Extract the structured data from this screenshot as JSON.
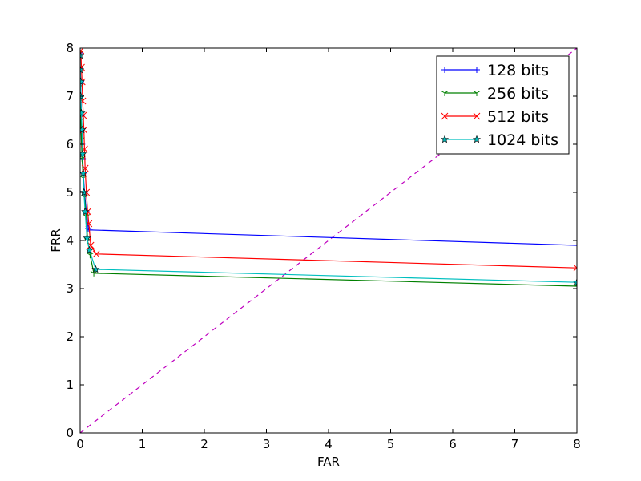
{
  "chart_data": {
    "type": "line",
    "xlabel": "FAR",
    "ylabel": "FRR",
    "xlim": [
      0,
      8
    ],
    "ylim": [
      0,
      8
    ],
    "xticks": [
      "0",
      "1",
      "2",
      "3",
      "4",
      "5",
      "6",
      "7",
      "8"
    ],
    "yticks": [
      "0",
      "1",
      "2",
      "3",
      "4",
      "5",
      "6",
      "7",
      "8"
    ],
    "grid": false,
    "legend_position": "top-right",
    "reference_line": {
      "style": "dashed",
      "color": "#bf00bf",
      "x": [
        0,
        8
      ],
      "y": [
        0,
        8
      ]
    },
    "series": [
      {
        "name": "128 bits",
        "color": "#0000ff",
        "marker": "plus",
        "x": [
          0.0,
          0.0,
          0.01,
          0.01,
          0.02,
          0.02,
          0.03,
          0.04,
          0.05,
          0.07,
          0.1,
          0.13,
          0.15,
          8.0
        ],
        "y": [
          7.9,
          7.6,
          7.3,
          7.0,
          6.6,
          6.3,
          6.0,
          5.7,
          5.4,
          5.0,
          4.6,
          4.25,
          4.22,
          3.9
        ]
      },
      {
        "name": "256 bits",
        "color": "#008000",
        "marker": "tri-down",
        "x": [
          0.0,
          0.0,
          0.0,
          0.01,
          0.01,
          0.02,
          0.03,
          0.05,
          0.07,
          0.1,
          0.12,
          0.16,
          0.22,
          8.0
        ],
        "y": [
          7.9,
          7.6,
          7.2,
          6.9,
          6.5,
          6.1,
          5.7,
          5.3,
          4.9,
          4.5,
          4.0,
          3.7,
          3.32,
          3.05
        ]
      },
      {
        "name": "512 bits",
        "color": "#ff0000",
        "marker": "x",
        "x": [
          0.01,
          0.02,
          0.03,
          0.04,
          0.05,
          0.06,
          0.07,
          0.08,
          0.1,
          0.12,
          0.14,
          0.17,
          0.26,
          8.0
        ],
        "y": [
          7.95,
          7.6,
          7.3,
          6.9,
          6.6,
          6.3,
          5.9,
          5.5,
          5.0,
          4.6,
          4.35,
          3.9,
          3.72,
          3.43
        ]
      },
      {
        "name": "1024 bits",
        "color": "#00bfbf",
        "marker": "star",
        "x": [
          0.0,
          0.0,
          0.01,
          0.01,
          0.02,
          0.03,
          0.04,
          0.05,
          0.06,
          0.08,
          0.11,
          0.15,
          0.25,
          8.0
        ],
        "y": [
          7.85,
          7.55,
          7.3,
          7.0,
          6.65,
          6.3,
          5.8,
          5.4,
          5.0,
          4.6,
          4.05,
          3.8,
          3.4,
          3.13
        ]
      }
    ]
  }
}
